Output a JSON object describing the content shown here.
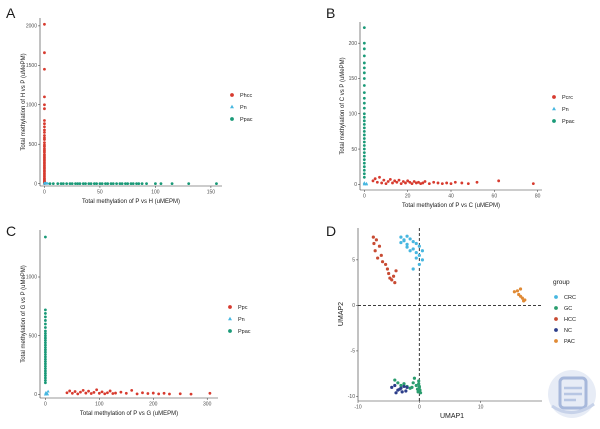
{
  "chart_data": [
    {
      "panel_label": "A",
      "type": "scatter",
      "xlabel": "Total methylation of P vs H (uMEPM)",
      "ylabel": "Total methylation of H vs P (uMePM)",
      "xlim": [
        -4,
        160
      ],
      "ylim": [
        -30,
        2100
      ],
      "xticks": [
        0,
        50,
        100,
        150
      ],
      "yticks": [
        0,
        500,
        1000,
        1500,
        2000
      ],
      "legend_position": "right",
      "series": [
        {
          "name": "Phcc",
          "color": "#d73b2f",
          "x": [
            0,
            0,
            0,
            0,
            0,
            0,
            0,
            0,
            0,
            0,
            0,
            0,
            0,
            0,
            0,
            0,
            0,
            0,
            0,
            0,
            0,
            0,
            0,
            0,
            0,
            0,
            0,
            0,
            0,
            0,
            0,
            0,
            0,
            0,
            0,
            0,
            0,
            0,
            0,
            0,
            0,
            0,
            0,
            0,
            0,
            0
          ],
          "y": [
            2020,
            1660,
            1450,
            1100,
            1000,
            950,
            800,
            760,
            720,
            680,
            650,
            610,
            580,
            560,
            520,
            490,
            470,
            440,
            420,
            400,
            370,
            350,
            330,
            310,
            290,
            270,
            250,
            230,
            210,
            190,
            170,
            150,
            130,
            110,
            90,
            70,
            55,
            40,
            30,
            20,
            15,
            10,
            8,
            5,
            3,
            1
          ]
        },
        {
          "name": "Pn",
          "color": "#47b7e0",
          "x": [
            0,
            0,
            1,
            2,
            3,
            1,
            0,
            2
          ],
          "y": [
            0,
            2,
            0,
            0,
            1,
            3,
            5,
            2
          ]
        },
        {
          "name": "Ppac",
          "color": "#1a9a78",
          "x": [
            5,
            8,
            12,
            15,
            17,
            20,
            23,
            25,
            28,
            30,
            32,
            35,
            37,
            40,
            42,
            45,
            47,
            50,
            52,
            55,
            57,
            60,
            62,
            65,
            68,
            70,
            73,
            75,
            78,
            80,
            83,
            85,
            88,
            92,
            100,
            105,
            115,
            130,
            155
          ],
          "y": [
            0,
            0,
            0,
            0,
            0,
            0,
            0,
            0,
            0,
            0,
            0,
            0,
            0,
            0,
            0,
            0,
            0,
            0,
            0,
            0,
            0,
            0,
            0,
            0,
            0,
            0,
            0,
            0,
            0,
            0,
            0,
            0,
            0,
            0,
            0,
            0,
            0,
            0,
            0
          ]
        }
      ]
    },
    {
      "panel_label": "B",
      "type": "scatter",
      "xlabel": "Total methylation of P vs C (uMEPM)",
      "ylabel": "Total methylation of C vs P (uMePM)",
      "xlim": [
        -2,
        82
      ],
      "ylim": [
        -8,
        230
      ],
      "xticks": [
        0,
        20,
        40,
        60,
        80
      ],
      "yticks": [
        0,
        50,
        100,
        150,
        200
      ],
      "legend_position": "right",
      "series": [
        {
          "name": "Pcrc",
          "color": "#d73b2f",
          "x": [
            4,
            5,
            6,
            7,
            8,
            9,
            10,
            11,
            12,
            13,
            14,
            15,
            16,
            17,
            18,
            19,
            20,
            21,
            22,
            23,
            24,
            25,
            26,
            27,
            28,
            30,
            32,
            34,
            36,
            38,
            40,
            42,
            45,
            48,
            52,
            62,
            78
          ],
          "y": [
            5,
            8,
            3,
            10,
            2,
            6,
            1,
            4,
            7,
            2,
            5,
            3,
            6,
            1,
            4,
            2,
            5,
            3,
            1,
            4,
            2,
            3,
            1,
            2,
            4,
            1,
            3,
            2,
            1,
            2,
            1,
            3,
            2,
            1,
            3,
            5,
            1
          ]
        },
        {
          "name": "Pn",
          "color": "#47b7e0",
          "x": [
            0,
            0,
            1,
            0,
            1
          ],
          "y": [
            0,
            1,
            0,
            2,
            1
          ]
        },
        {
          "name": "Ppac",
          "color": "#1a9a78",
          "x": [
            0,
            0,
            0,
            0,
            0,
            0,
            0,
            0,
            0,
            0,
            0,
            0,
            0,
            0,
            0,
            0,
            0,
            0,
            0,
            0,
            0,
            0,
            0,
            0,
            0,
            0,
            0,
            0,
            0,
            0,
            0,
            0
          ],
          "y": [
            222,
            200,
            192,
            182,
            172,
            165,
            158,
            150,
            140,
            130,
            122,
            115,
            108,
            100,
            95,
            90,
            85,
            80,
            75,
            70,
            65,
            60,
            55,
            50,
            45,
            40,
            35,
            30,
            25,
            20,
            15,
            10
          ]
        }
      ]
    },
    {
      "panel_label": "C",
      "type": "scatter",
      "xlabel": "Total methylation of P vs G (uMEPM)",
      "ylabel": "Total methylation of G vs P (uMePM)",
      "xlim": [
        -10,
        320
      ],
      "ylim": [
        -30,
        1400
      ],
      "xticks": [
        0,
        100,
        200,
        300
      ],
      "yticks": [
        0,
        500,
        1000
      ],
      "legend_position": "right",
      "series": [
        {
          "name": "Ppc",
          "color": "#d73b2f",
          "x": [
            40,
            45,
            50,
            55,
            60,
            65,
            70,
            75,
            80,
            85,
            90,
            95,
            100,
            105,
            110,
            115,
            120,
            125,
            130,
            140,
            150,
            160,
            170,
            180,
            190,
            200,
            210,
            220,
            230,
            250,
            270,
            305
          ],
          "y": [
            15,
            30,
            10,
            25,
            5,
            20,
            35,
            12,
            28,
            8,
            18,
            40,
            10,
            22,
            6,
            15,
            30,
            8,
            12,
            20,
            10,
            35,
            5,
            15,
            8,
            12,
            5,
            10,
            4,
            6,
            3,
            10
          ]
        },
        {
          "name": "Pn",
          "color": "#47b7e0",
          "x": [
            0,
            2,
            4,
            1,
            3,
            5
          ],
          "y": [
            0,
            3,
            1,
            15,
            5,
            25
          ]
        },
        {
          "name": "Ppac",
          "color": "#1a9a78",
          "x": [
            0,
            0,
            0,
            0,
            0,
            0,
            0,
            0,
            0,
            0,
            0,
            0,
            0,
            0,
            0,
            0,
            0,
            0,
            0,
            0,
            0,
            0,
            0,
            0,
            0,
            0,
            0,
            0,
            0,
            0
          ],
          "y": [
            1340,
            720,
            690,
            660,
            630,
            600,
            570,
            540,
            520,
            500,
            480,
            460,
            440,
            420,
            400,
            380,
            360,
            340,
            320,
            300,
            280,
            260,
            240,
            220,
            200,
            180,
            160,
            140,
            120,
            100
          ]
        }
      ]
    },
    {
      "panel_label": "D",
      "type": "scatter",
      "xlabel": "UMAP1",
      "ylabel": "UMAP2",
      "xlim": [
        -10,
        20
      ],
      "ylim": [
        -10.5,
        8.5
      ],
      "xticks": [
        -10,
        0,
        10
      ],
      "yticks": [
        -10,
        -5,
        0,
        5
      ],
      "reference_lines": {
        "x": 0,
        "y": 0
      },
      "legend_title": "group",
      "legend_position": "right",
      "series": [
        {
          "name": "CRC",
          "color": "#47b7e0",
          "x": [
            -3,
            -2.5,
            -2,
            -1.5,
            -1,
            -0.5,
            0,
            0.5,
            -3,
            -2,
            -1,
            0,
            0.5,
            -1.5,
            -0.5,
            0,
            -1,
            -2,
            -2.5,
            -0.5
          ],
          "y": [
            7.5,
            7.2,
            7.6,
            7.3,
            7.0,
            6.8,
            6.5,
            6.0,
            6.9,
            6.7,
            6.2,
            5.5,
            5.0,
            6.0,
            5.8,
            4.5,
            4.0,
            6.4,
            7.1,
            5.2
          ]
        },
        {
          "name": "GC",
          "color": "#2a9d6e",
          "x": [
            -4,
            -3.5,
            -3,
            -2.5,
            -2,
            -1.5,
            -1.2,
            -1,
            -0.8,
            -0.5,
            -0.3,
            -0.2,
            -0.1,
            0,
            -0.1,
            0,
            0.1,
            0.2
          ],
          "y": [
            -8.2,
            -8.5,
            -8.8,
            -8.6,
            -8.9,
            -9.1,
            -9.0,
            -8.5,
            -8.0,
            -8.8,
            -9.2,
            -9.5,
            -8.6,
            -9.0,
            -8.3,
            -8.9,
            -9.3,
            -9.6
          ]
        },
        {
          "name": "HCC",
          "color": "#c84b33",
          "x": [
            -7.5,
            -7,
            -6.5,
            -7.2,
            -6.8,
            -6,
            -5.5,
            -5,
            -4.8,
            -4.5,
            -4.2,
            -4,
            -3.8,
            -5.2,
            -6.2,
            -7.4
          ],
          "y": [
            7.5,
            7.2,
            6.5,
            6.0,
            5.2,
            4.8,
            4.5,
            3.5,
            3.0,
            2.8,
            3.2,
            2.5,
            3.8,
            4.0,
            5.5,
            6.8
          ]
        },
        {
          "name": "NC",
          "color": "#2c3e8a",
          "x": [
            -4.5,
            -4,
            -3.5,
            -3,
            -2.8,
            -2.5,
            -2.2,
            -2,
            -3.8,
            -3.2
          ],
          "y": [
            -9.0,
            -8.8,
            -9.3,
            -9.1,
            -9.5,
            -8.9,
            -9.4,
            -9.0,
            -9.6,
            -9.2
          ]
        },
        {
          "name": "PAC",
          "color": "#e08a35",
          "x": [
            15.5,
            16,
            16.2,
            16.5,
            16.8,
            17,
            16.5,
            17.2
          ],
          "y": [
            1.5,
            1.6,
            1.2,
            1.0,
            0.8,
            0.5,
            1.8,
            0.6
          ]
        }
      ]
    }
  ],
  "legend_title": "group"
}
